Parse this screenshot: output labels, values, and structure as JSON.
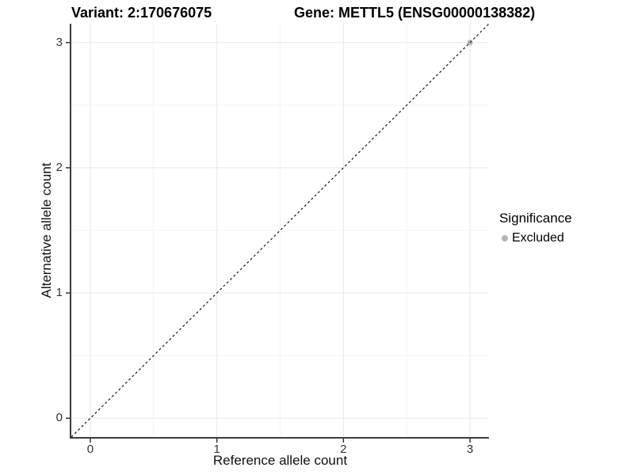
{
  "titles": {
    "variant": "Variant: 2:170676075",
    "gene": "Gene: METTL5 (ENSG00000138382)"
  },
  "legend": {
    "title": "Significance",
    "items": [
      {
        "label": "Excluded",
        "color": "#b4b4b4"
      }
    ]
  },
  "chart_data": {
    "type": "scatter",
    "title": "Variant: 2:170676075  |  Gene: METTL5 (ENSG00000138382)",
    "xlabel": "Reference allele count",
    "ylabel": "Alternative allele count",
    "xlim": [
      -0.15,
      3.15
    ],
    "ylim": [
      -0.15,
      3.15
    ],
    "x_ticks": [
      0,
      1,
      2,
      3
    ],
    "y_ticks": [
      0,
      1,
      2,
      3
    ],
    "minor_ticks": [
      0.5,
      1.5,
      2.5
    ],
    "grid": true,
    "legend_position": "right",
    "series": [
      {
        "name": "Excluded",
        "color": "#b4b4b4",
        "points": [
          {
            "x": 3,
            "y": 3
          }
        ]
      }
    ],
    "reference_line": {
      "kind": "identity",
      "equation": "y = x",
      "linetype": "dashed",
      "color": "#1a1a1a"
    }
  },
  "style": {
    "background": "#ffffff",
    "grid_major": "#e7e7e7",
    "grid_minor": "#f3f3f3",
    "axis_line": "#3d3d3d",
    "tick_mark": "#333333",
    "tick_label": "#333333",
    "point_radius": 3.5
  }
}
